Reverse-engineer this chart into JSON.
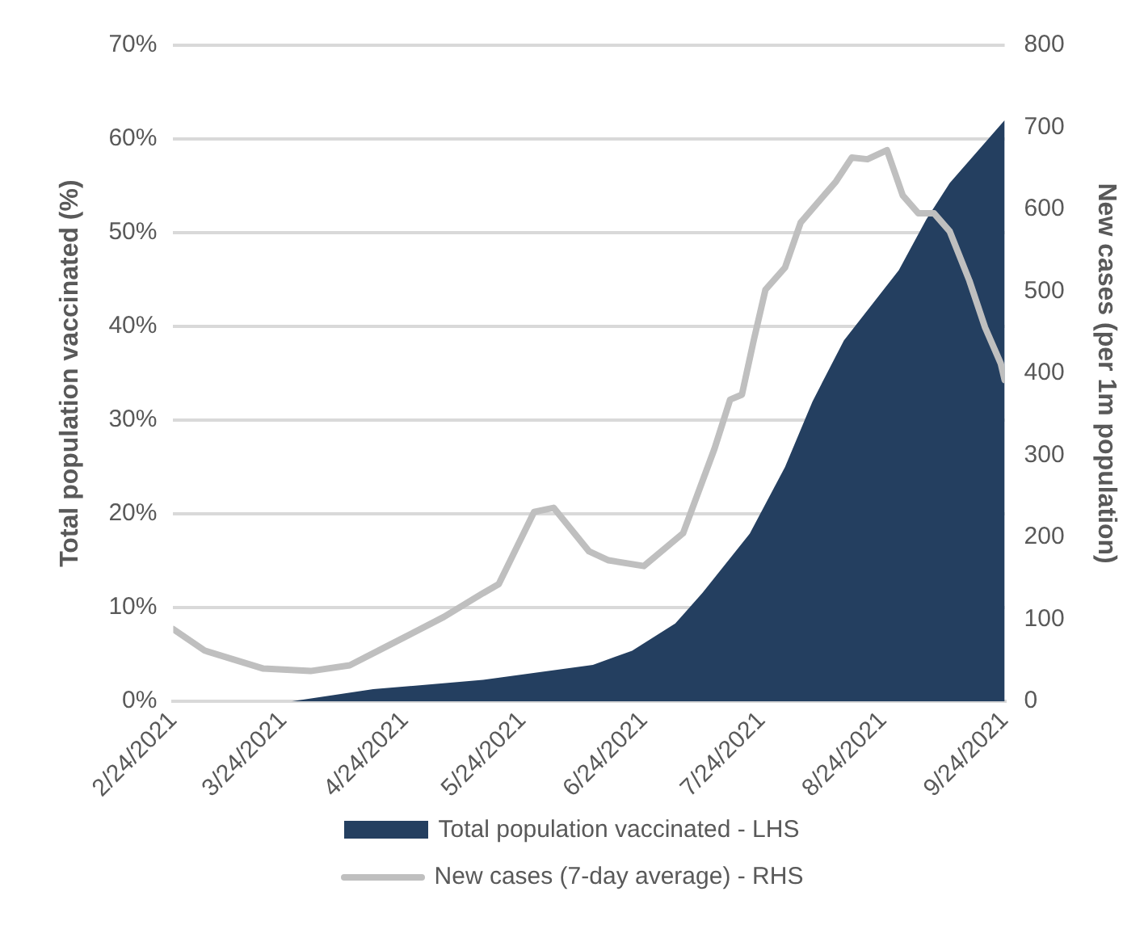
{
  "chart_data": {
    "type": "area",
    "ylabel": "Total population vaccinated (%)",
    "y2label": "New cases (per 1m population)",
    "series": [
      {
        "name": "Total population vaccinated - LHS",
        "color": "#243f60",
        "x": [
          "2021-02-24",
          "2021-03-26",
          "2021-04-16",
          "2021-05-14",
          "2021-06-11",
          "2021-06-21",
          "2021-07-02",
          "2021-07-09",
          "2021-07-21",
          "2021-07-30",
          "2021-08-06",
          "2021-08-14",
          "2021-08-28",
          "2021-09-04",
          "2021-09-10",
          "2021-09-24"
        ],
        "values": [
          0,
          0,
          1.3,
          2.3,
          3.9,
          5.4,
          8.3,
          11.6,
          17.9,
          25,
          32,
          38.5,
          46,
          51.4,
          55.3,
          62
        ]
      },
      {
        "name": "New cases (7-day average) - RHS",
        "type": "line",
        "axis": "y2",
        "color": "#bfbfbf",
        "x": [
          "2021-02-24",
          "2021-03-04",
          "2021-03-19",
          "2021-03-31",
          "2021-04-10",
          "2021-04-19",
          "2021-05-04",
          "2021-05-14",
          "2021-05-18",
          "2021-05-27",
          "2021-06-01",
          "2021-06-10",
          "2021-06-15",
          "2021-06-24",
          "2021-07-04",
          "2021-07-12",
          "2021-07-16",
          "2021-07-19",
          "2021-07-22",
          "2021-07-25",
          "2021-07-30",
          "2021-08-03",
          "2021-08-12",
          "2021-08-16",
          "2021-08-20",
          "2021-08-25",
          "2021-08-29",
          "2021-09-02",
          "2021-09-06",
          "2021-09-10",
          "2021-09-15",
          "2021-09-19",
          "2021-09-23",
          "2021-09-24"
        ],
        "values": [
          88,
          62,
          40,
          37,
          44,
          66,
          103,
          132,
          143,
          231,
          236,
          183,
          172,
          165,
          205,
          308,
          368,
          374,
          440,
          502,
          529,
          584,
          634,
          663,
          661,
          672,
          617,
          595,
          595,
          573,
          513,
          456,
          412,
          392
        ]
      }
    ],
    "xlim": [
      "2021-02-24",
      "2021-09-24"
    ],
    "xticks": [
      {
        "value": "2021-02-24",
        "label": "2/24/2021"
      },
      {
        "value": "2021-03-24",
        "label": "3/24/2021"
      },
      {
        "value": "2021-04-24",
        "label": "4/24/2021"
      },
      {
        "value": "2021-05-24",
        "label": "5/24/2021"
      },
      {
        "value": "2021-06-24",
        "label": "6/24/2021"
      },
      {
        "value": "2021-07-24",
        "label": "7/24/2021"
      },
      {
        "value": "2021-08-24",
        "label": "8/24/2021"
      },
      {
        "value": "2021-09-24",
        "label": "9/24/2021"
      }
    ],
    "ylim": [
      0,
      70
    ],
    "yticks": [
      {
        "value": 0,
        "label": "0%"
      },
      {
        "value": 10,
        "label": "10%"
      },
      {
        "value": 20,
        "label": "20%"
      },
      {
        "value": 30,
        "label": "30%"
      },
      {
        "value": 40,
        "label": "40%"
      },
      {
        "value": 50,
        "label": "50%"
      },
      {
        "value": 60,
        "label": "60%"
      },
      {
        "value": 70,
        "label": "70%"
      }
    ],
    "y2lim": [
      0,
      800
    ],
    "y2ticks": [
      0,
      100,
      200,
      300,
      400,
      500,
      600,
      700,
      800
    ],
    "grid": "y",
    "legend": "bottom",
    "marker": "none",
    "line_style": "solid"
  }
}
